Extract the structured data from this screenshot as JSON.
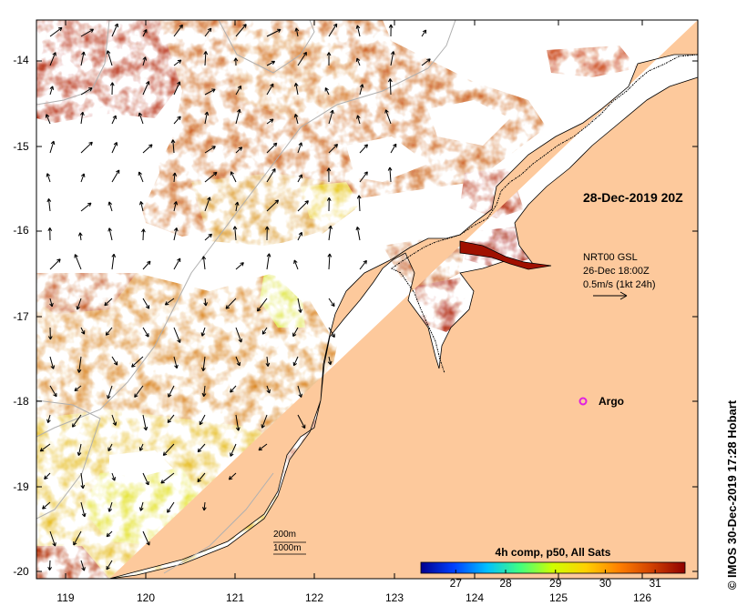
{
  "map": {
    "valid_time": "28-Dec-2019 20Z",
    "vector_source": "NRT00 GSL",
    "vector_time": "26-Dec 18:00Z",
    "vector_scale": "0.5m/s (1kt 24h)",
    "argo_label": "Argo",
    "isobath_labels": [
      "200m",
      "1000m"
    ],
    "credit": "© IMOS 30-Dec-2019 17:28 Hobart",
    "lat_labels": [
      "-14",
      "-15",
      "-16",
      "-17",
      "-18",
      "-19",
      "-20"
    ],
    "lon_labels": [
      "119",
      "120",
      "121",
      "122",
      "123",
      "124",
      "125",
      "126"
    ],
    "colors": {
      "land": "#fdc99c",
      "coast": "#000000",
      "isobath": "#b0b0b0",
      "argo": "#e020e0"
    }
  },
  "colorbar": {
    "title": "4h comp, p50, All Sats",
    "ticks": [
      "27",
      "28",
      "29",
      "30",
      "31"
    ],
    "tick_values": [
      27,
      28,
      29,
      30,
      31
    ],
    "range": [
      26.3,
      31.6
    ],
    "colors": [
      "#00008f",
      "#0040ff",
      "#00c0ff",
      "#40ff80",
      "#d0ff00",
      "#ffd000",
      "#ff8000",
      "#d04000",
      "#8f0000"
    ]
  }
}
